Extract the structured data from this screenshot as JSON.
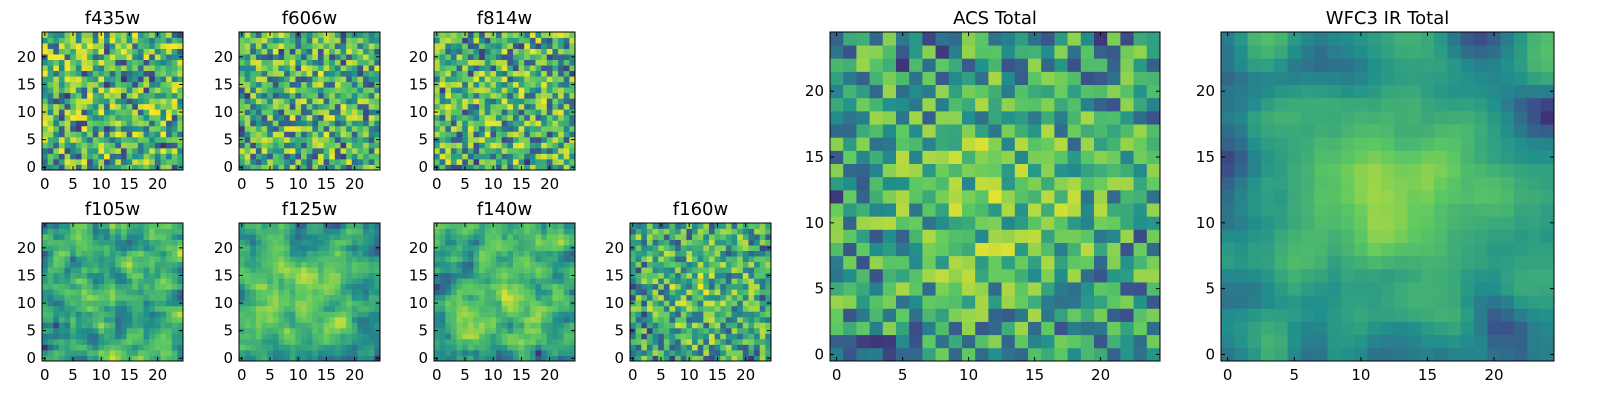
{
  "chart_data": {
    "type": "heatmap",
    "colormap": [
      "#440154",
      "#3b528b",
      "#21918c",
      "#5ec962",
      "#fde725"
    ],
    "grid_size": 25,
    "panels": [
      {
        "id": "f435w",
        "title": "f435w",
        "xticks": [
          0,
          5,
          10,
          15,
          20
        ],
        "yticks": [
          0,
          5,
          10,
          15,
          20
        ],
        "xlim": [
          -0.5,
          24.5
        ],
        "ylim": [
          -0.5,
          24.5
        ],
        "seed": 11,
        "smooth": 0,
        "center_boost": 0.0
      },
      {
        "id": "f606w",
        "title": "f606w",
        "xticks": [
          0,
          5,
          10,
          15,
          20
        ],
        "yticks": [
          0,
          5,
          10,
          15,
          20
        ],
        "xlim": [
          -0.5,
          24.5
        ],
        "ylim": [
          -0.5,
          24.5
        ],
        "seed": 23,
        "smooth": 0,
        "center_boost": 0.05
      },
      {
        "id": "f814w",
        "title": "f814w",
        "xticks": [
          0,
          5,
          10,
          15,
          20
        ],
        "yticks": [
          0,
          5,
          10,
          15,
          20
        ],
        "xlim": [
          -0.5,
          24.5
        ],
        "ylim": [
          -0.5,
          24.5
        ],
        "seed": 37,
        "smooth": 0,
        "center_boost": 0.05
      },
      {
        "id": "f105w",
        "title": "f105w",
        "xticks": [
          0,
          5,
          10,
          15,
          20
        ],
        "yticks": [
          0,
          5,
          10,
          15,
          20
        ],
        "xlim": [
          -0.5,
          24.5
        ],
        "ylim": [
          -0.5,
          24.5
        ],
        "seed": 41,
        "smooth": 1,
        "center_boost": 0.1
      },
      {
        "id": "f125w",
        "title": "f125w",
        "xticks": [
          0,
          5,
          10,
          15,
          20
        ],
        "yticks": [
          0,
          5,
          10,
          15,
          20
        ],
        "xlim": [
          -0.5,
          24.5
        ],
        "ylim": [
          -0.5,
          24.5
        ],
        "seed": 53,
        "smooth": 1,
        "center_boost": 0.25
      },
      {
        "id": "f140w",
        "title": "f140w",
        "xticks": [
          0,
          5,
          10,
          15,
          20
        ],
        "yticks": [
          0,
          5,
          10,
          15,
          20
        ],
        "xlim": [
          -0.5,
          24.5
        ],
        "ylim": [
          -0.5,
          24.5
        ],
        "seed": 67,
        "smooth": 1,
        "center_boost": 0.2
      },
      {
        "id": "f160w",
        "title": "f160w",
        "xticks": [
          0,
          5,
          10,
          15,
          20
        ],
        "yticks": [
          0,
          5,
          10,
          15,
          20
        ],
        "xlim": [
          -0.5,
          24.5
        ],
        "ylim": [
          -0.5,
          24.5
        ],
        "seed": 79,
        "smooth": 0,
        "center_boost": 0.15
      },
      {
        "id": "acs-total",
        "title": "ACS Total",
        "xticks": [
          0,
          5,
          10,
          15,
          20
        ],
        "yticks": [
          0,
          5,
          10,
          15,
          20
        ],
        "xlim": [
          -0.5,
          24.5
        ],
        "ylim": [
          -0.5,
          24.5
        ],
        "seed": 97,
        "smooth": 0,
        "center_boost": 0.25
      },
      {
        "id": "wfc3-ir-total",
        "title": "WFC3 IR Total",
        "xticks": [
          0,
          5,
          10,
          15,
          20
        ],
        "yticks": [
          0,
          5,
          10,
          15,
          20
        ],
        "xlim": [
          -0.5,
          24.5
        ],
        "ylim": [
          -0.5,
          24.5
        ],
        "seed": 113,
        "smooth": 2,
        "center_boost": 0.45
      }
    ]
  }
}
